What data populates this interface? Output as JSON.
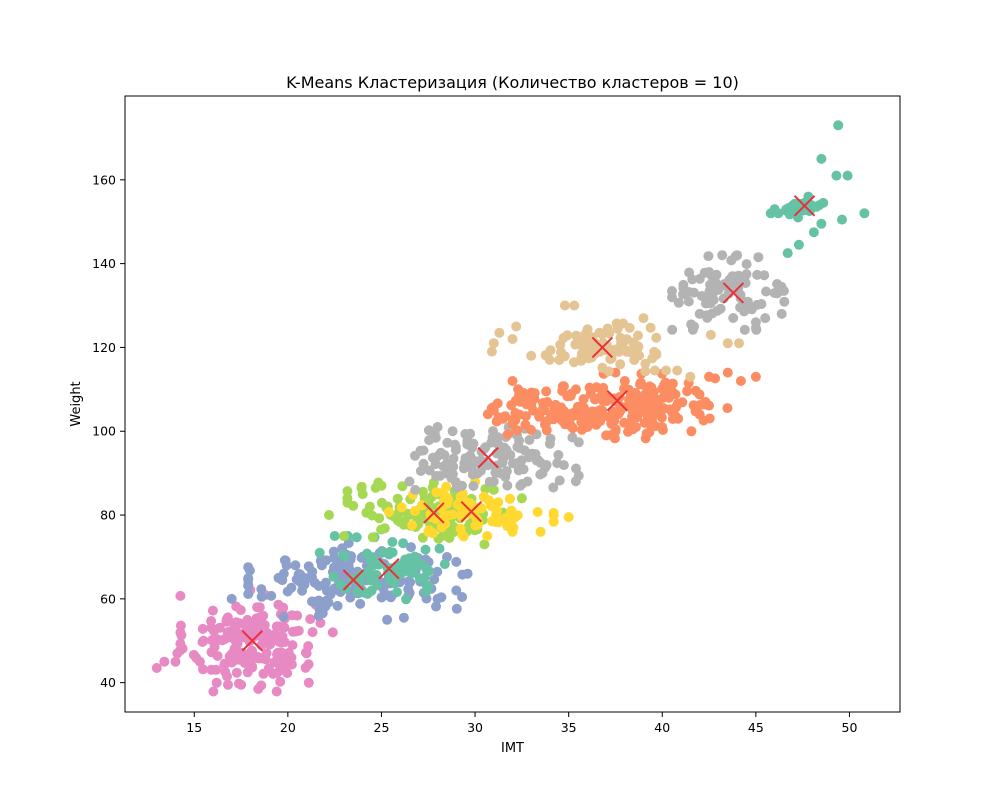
{
  "chart_data": {
    "type": "scatter",
    "title": "K-Means Кластеризация (Количество кластеров = 10)",
    "xlabel": "IMT",
    "ylabel": "Weight",
    "xlim": [
      11.3,
      52.7
    ],
    "ylim": [
      33,
      180
    ],
    "xticks": [
      15,
      20,
      25,
      30,
      35,
      40,
      45,
      50
    ],
    "yticks": [
      40,
      60,
      80,
      100,
      120,
      140,
      160
    ],
    "grid": false,
    "legend": "none",
    "point_colors": {
      "pink": "#e78ac3",
      "blue": "#8da0cb",
      "teal": "#66c2a5",
      "green": "#a6d854",
      "yellow": "#ffd92f",
      "gray": "#b3b3b3",
      "orange": "#fc8d62",
      "tan": "#e5c494"
    },
    "centroid_color": "#e8313a",
    "clusters": [
      {
        "color_key": "pink",
        "center": [
          18.0,
          50.0
        ],
        "spread": [
          1.7,
          5.5
        ],
        "count": 170,
        "extra_points": [
          [
            13.0,
            43.5
          ],
          [
            13.4,
            45.0
          ],
          [
            14.1,
            47.0
          ],
          [
            14.0,
            45.0
          ],
          [
            15.3,
            45.0
          ],
          [
            15.5,
            50.0
          ],
          [
            16.2,
            40.0
          ],
          [
            16.8,
            39.5
          ],
          [
            17.5,
            39.5
          ],
          [
            19.5,
            45.0
          ],
          [
            21.0,
            47.0
          ],
          [
            22.4,
            52.0
          ],
          [
            20.5,
            56.0
          ],
          [
            18.5,
            58.0
          ]
        ]
      },
      {
        "color_key": "blue",
        "center": [
          23.6,
          64.5
        ],
        "spread": [
          2.6,
          4.0
        ],
        "count": 150,
        "extra_points": [
          [
            17.0,
            60.0
          ],
          [
            18.6,
            60.5
          ],
          [
            19.5,
            65.0
          ],
          [
            20.4,
            68.0
          ],
          [
            25.3,
            55.0
          ],
          [
            26.2,
            55.5
          ],
          [
            28.0,
            60.0
          ],
          [
            29.0,
            62.0
          ],
          [
            29.6,
            66.0
          ],
          [
            28.5,
            70.0
          ]
        ]
      },
      {
        "color_key": "teal",
        "center": [
          25.4,
          67.2
        ],
        "spread": [
          1.6,
          3.4
        ],
        "count": 70,
        "extra_points": [
          [
            21.7,
            71.0
          ],
          [
            22.5,
            75.0
          ],
          [
            23.2,
            75.0
          ],
          [
            27.5,
            63.0
          ],
          [
            28.1,
            72.0
          ]
        ]
      },
      {
        "color_key": "green",
        "center": [
          27.8,
          80.5
        ],
        "spread": [
          2.1,
          3.3
        ],
        "count": 110,
        "extra_points": [
          [
            22.2,
            80.0
          ],
          [
            23.0,
            75.0
          ],
          [
            24.0,
            85.0
          ],
          [
            25.0,
            87.0
          ],
          [
            31.0,
            86.0
          ],
          [
            32.5,
            84.0
          ],
          [
            30.5,
            73.0
          ]
        ]
      },
      {
        "color_key": "yellow",
        "center": [
          29.8,
          80.8
        ],
        "spread": [
          2.0,
          2.7
        ],
        "count": 75,
        "extra_points": [
          [
            34.2,
            80.0
          ],
          [
            35.0,
            79.5
          ],
          [
            33.5,
            76.0
          ],
          [
            32.0,
            76.0
          ],
          [
            27.5,
            76.0
          ],
          [
            30.0,
            88.0
          ]
        ]
      },
      {
        "color_key": "gray",
        "center": [
          30.7,
          93.7
        ],
        "spread": [
          2.2,
          3.6
        ],
        "count": 120,
        "extra_points": [
          [
            26.5,
            88.0
          ],
          [
            26.8,
            86.0
          ],
          [
            28.0,
            101.0
          ],
          [
            28.8,
            100.0
          ],
          [
            34.0,
            97.0
          ],
          [
            35.2,
            98.5
          ],
          [
            33.6,
            90.0
          ],
          [
            32.8,
            88.0
          ],
          [
            31.0,
            88.0
          ]
        ]
      },
      {
        "color_key": "orange",
        "center": [
          35.0,
          105.0
        ],
        "spread": [
          2.1,
          2.6
        ],
        "count": 120,
        "extra_points": [
          [
            31.0,
            105.0
          ],
          [
            31.5,
            103.0
          ],
          [
            32.3,
            110.0
          ],
          [
            32.0,
            112.0
          ],
          [
            38.0,
            112.0
          ]
        ]
      },
      {
        "color_key": "orange",
        "center": [
          39.3,
          106.0
        ],
        "spread": [
          1.9,
          3.5
        ],
        "count": 130,
        "extra_points": [
          [
            36.0,
            101.0
          ],
          [
            37.0,
            99.0
          ],
          [
            37.5,
            114.0
          ],
          [
            42.5,
            113.0
          ],
          [
            43.5,
            114.0
          ],
          [
            44.2,
            112.0
          ],
          [
            45.0,
            113.0
          ],
          [
            42.0,
            104.0
          ]
        ]
      },
      {
        "color_key": "tan",
        "center": [
          36.6,
          120.0
        ],
        "spread": [
          1.4,
          2.6
        ],
        "count": 90,
        "extra_points": [
          [
            30.9,
            119.0
          ],
          [
            31.0,
            121.0
          ],
          [
            31.3,
            123.5
          ],
          [
            32.0,
            122.0
          ],
          [
            32.2,
            125.0
          ],
          [
            33.0,
            118.0
          ],
          [
            34.5,
            117.0
          ],
          [
            34.8,
            130.0
          ],
          [
            35.3,
            130.0
          ],
          [
            38.5,
            117.0
          ],
          [
            39.6,
            114.5
          ],
          [
            40.2,
            114.5
          ],
          [
            40.8,
            114.5
          ],
          [
            41.5,
            113.0
          ],
          [
            42.6,
            123.0
          ],
          [
            43.5,
            121.0
          ],
          [
            44.1,
            121.0
          ],
          [
            39.0,
            127.0
          ]
        ]
      },
      {
        "color_key": "gray",
        "center": [
          43.6,
          133.0
        ],
        "spread": [
          1.4,
          4.0
        ],
        "count": 80,
        "extra_points": [
          [
            41.7,
            125.0
          ],
          [
            42.0,
            128.0
          ],
          [
            42.5,
            138.0
          ],
          [
            44.0,
            142.0
          ],
          [
            43.2,
            142.0
          ],
          [
            46.0,
            133.0
          ],
          [
            46.5,
            133.5
          ],
          [
            45.0,
            126.0
          ],
          [
            45.5,
            127.0
          ],
          [
            44.5,
            137.5
          ]
        ]
      },
      {
        "color_key": "teal",
        "center": [
          47.3,
          153.2
        ],
        "spread": [
          0.6,
          1.0
        ],
        "count": 25,
        "extra_points": [
          [
            45.8,
            152.0
          ],
          [
            46.0,
            153.0
          ],
          [
            46.2,
            152.0
          ],
          [
            46.7,
            142.5
          ],
          [
            47.3,
            144.5
          ],
          [
            48.1,
            147.5
          ],
          [
            48.5,
            149.5
          ],
          [
            48.5,
            165.0
          ],
          [
            48.6,
            154.5
          ],
          [
            49.3,
            161.0
          ],
          [
            49.4,
            173.0
          ],
          [
            49.6,
            150.5
          ],
          [
            49.9,
            161.0
          ],
          [
            50.8,
            152.0
          ],
          [
            47.8,
            156.0
          ]
        ]
      }
    ],
    "centroids": [
      [
        18.1,
        50.0
      ],
      [
        23.5,
        64.5
      ],
      [
        25.4,
        67.2
      ],
      [
        27.8,
        80.5
      ],
      [
        29.8,
        80.8
      ],
      [
        30.7,
        93.7
      ],
      [
        36.8,
        120.0
      ],
      [
        37.6,
        107.3
      ],
      [
        43.8,
        133.0
      ],
      [
        47.6,
        153.8
      ]
    ]
  }
}
